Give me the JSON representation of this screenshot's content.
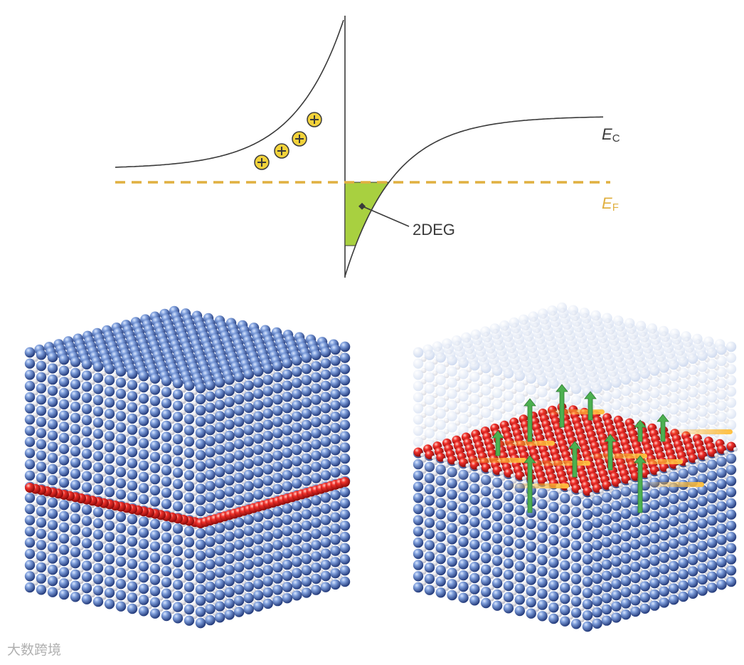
{
  "band_diagram": {
    "labels": {
      "conduction_band": {
        "symbol": "E",
        "subscript": "C"
      },
      "fermi_level": {
        "symbol": "E",
        "subscript": "F"
      },
      "two_deg": "2DEG"
    }
  },
  "watermark": "大数跨境"
}
